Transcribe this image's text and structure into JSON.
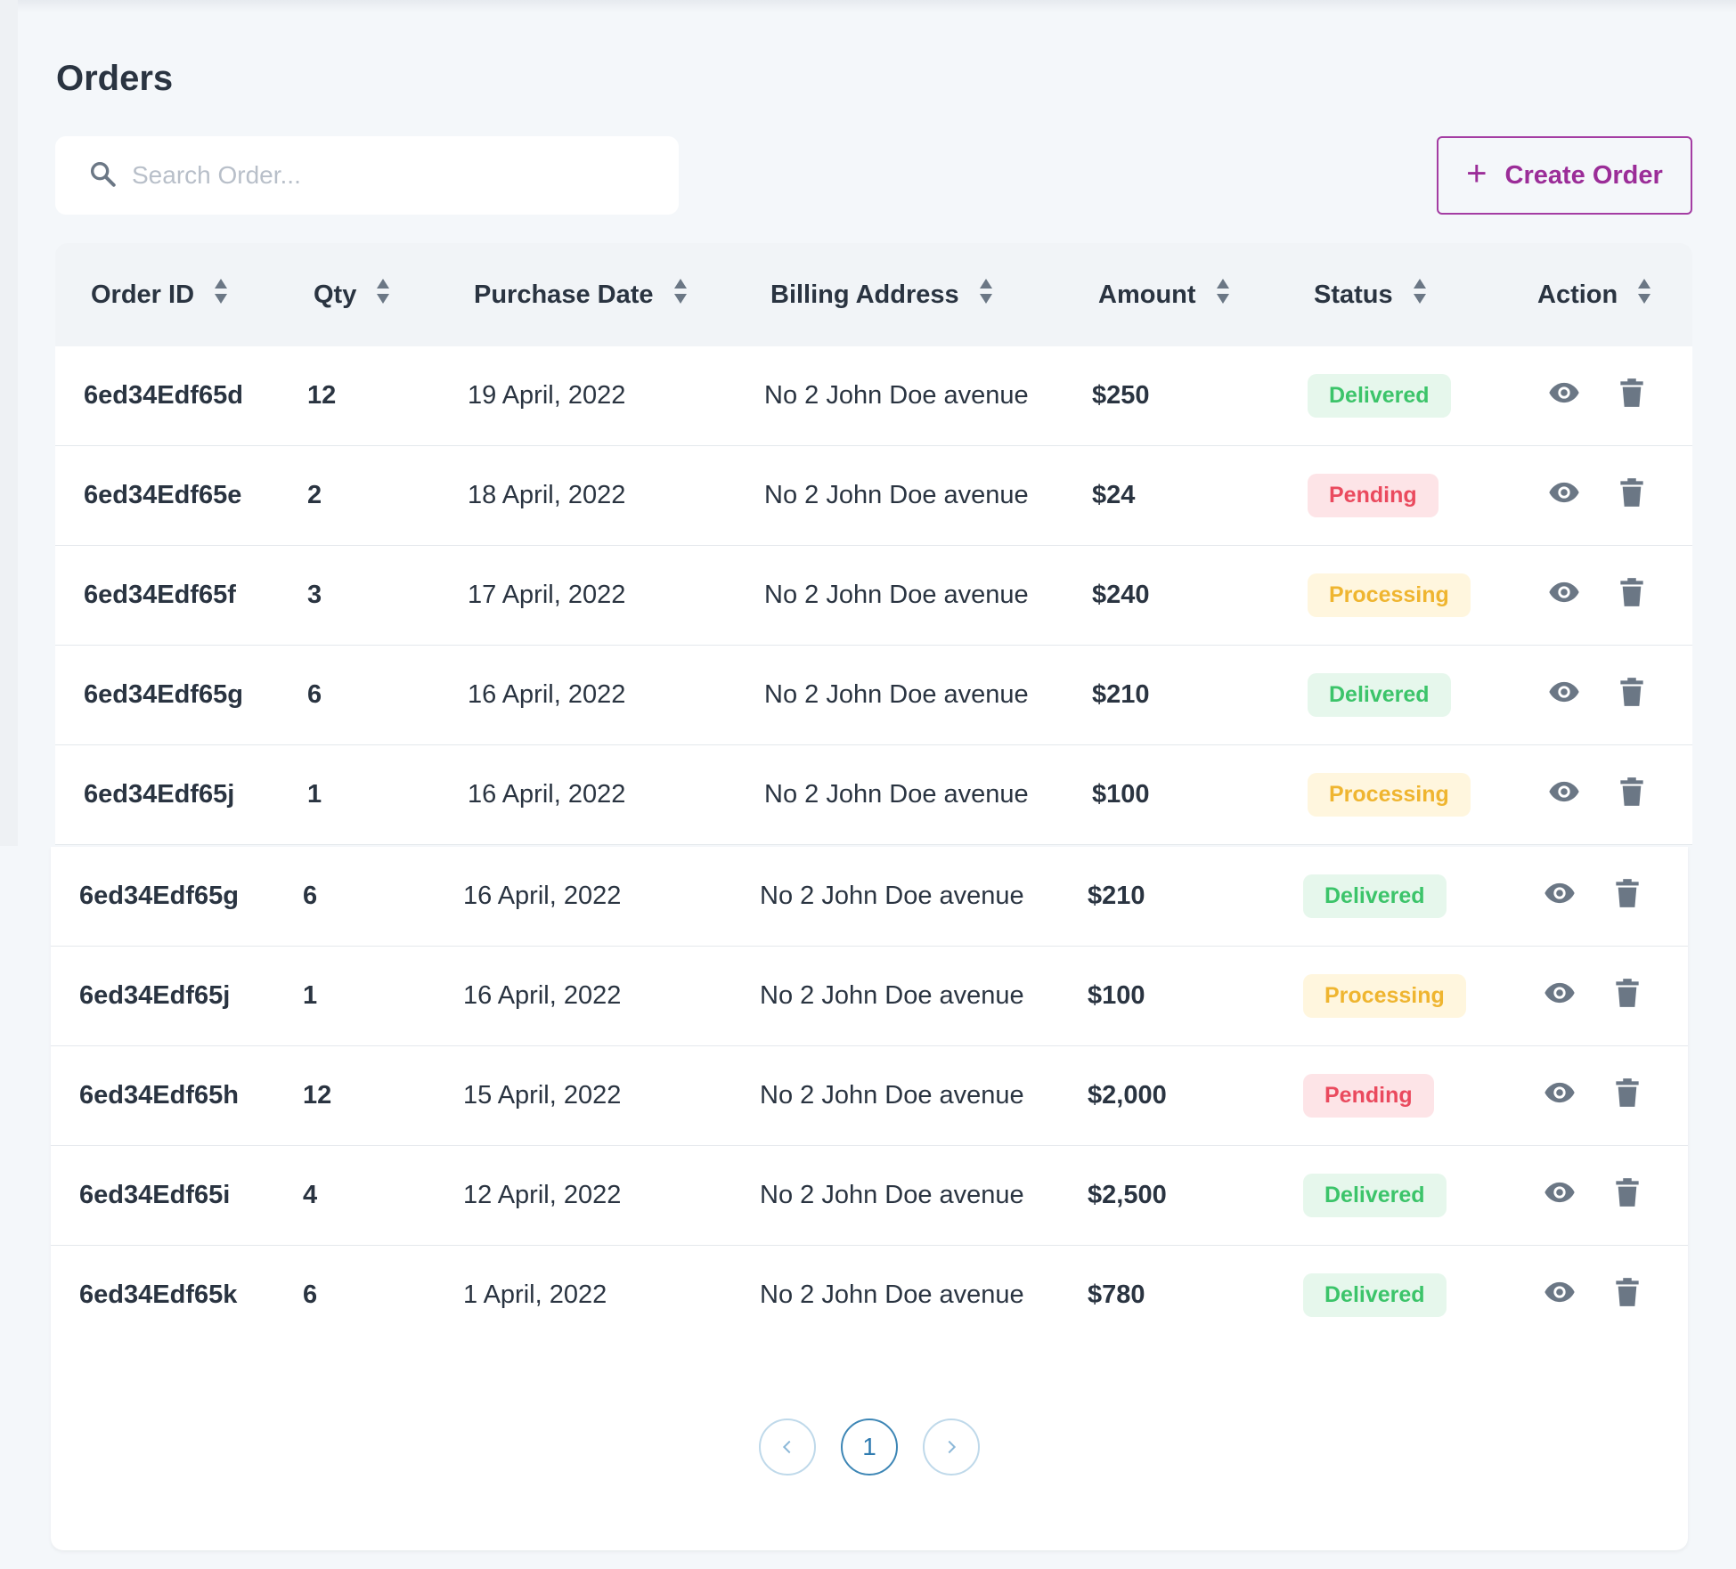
{
  "page": {
    "title": "Orders"
  },
  "search": {
    "placeholder": "Search Order..."
  },
  "toolbar": {
    "create_label": "Create Order"
  },
  "table": {
    "columns": [
      "Order ID",
      "Qty",
      "Purchase Date",
      "Billing Address",
      "Amount",
      "Status",
      "Action"
    ],
    "rows": [
      {
        "id": "6ed34Edf65d",
        "qty": "12",
        "date": "19 April, 2022",
        "address": "No 2 John Doe avenue",
        "amount": "$250",
        "status": "Delivered"
      },
      {
        "id": "6ed34Edf65e",
        "qty": "2",
        "date": "18 April, 2022",
        "address": "No 2 John Doe avenue",
        "amount": "$24",
        "status": "Pending"
      },
      {
        "id": "6ed34Edf65f",
        "qty": "3",
        "date": "17 April, 2022",
        "address": "No 2 John Doe avenue",
        "amount": "$240",
        "status": "Processing"
      },
      {
        "id": "6ed34Edf65g",
        "qty": "6",
        "date": "16 April, 2022",
        "address": "No 2 John Doe avenue",
        "amount": "$210",
        "status": "Delivered"
      },
      {
        "id": "6ed34Edf65j",
        "qty": "1",
        "date": "16 April, 2022",
        "address": "No 2 John Doe avenue",
        "amount": "$100",
        "status": "Processing"
      },
      {
        "id": "6ed34Edf65g",
        "qty": "6",
        "date": "16 April, 2022",
        "address": "No 2 John Doe avenue",
        "amount": "$210",
        "status": "Delivered"
      },
      {
        "id": "6ed34Edf65j",
        "qty": "1",
        "date": "16 April, 2022",
        "address": "No 2 John Doe avenue",
        "amount": "$100",
        "status": "Processing"
      },
      {
        "id": "6ed34Edf65h",
        "qty": "12",
        "date": "15 April, 2022",
        "address": "No 2 John Doe avenue",
        "amount": "$2,000",
        "status": "Pending"
      },
      {
        "id": "6ed34Edf65i",
        "qty": "4",
        "date": "12 April, 2022",
        "address": "No 2 John Doe avenue",
        "amount": "$2,500",
        "status": "Delivered"
      },
      {
        "id": "6ed34Edf65k",
        "qty": "6",
        "date": "1 April, 2022",
        "address": "No 2 John Doe avenue",
        "amount": "$780",
        "status": "Delivered"
      }
    ],
    "action_icons": [
      "eye-icon",
      "trash-icon"
    ]
  },
  "status_colors": {
    "Delivered": {
      "bg": "#e6f7ec",
      "fg": "#3cc46a"
    },
    "Pending": {
      "bg": "#fde4e7",
      "fg": "#ea4a5e"
    },
    "Processing": {
      "bg": "#fff6de",
      "fg": "#efb530"
    }
  },
  "pagination": {
    "current": "1",
    "prev_icon": "chevron-left-icon",
    "next_icon": "chevron-right-icon"
  },
  "colors": {
    "accent": "#9b2d98",
    "text": "#2a3441",
    "background": "#f4f7fa"
  }
}
